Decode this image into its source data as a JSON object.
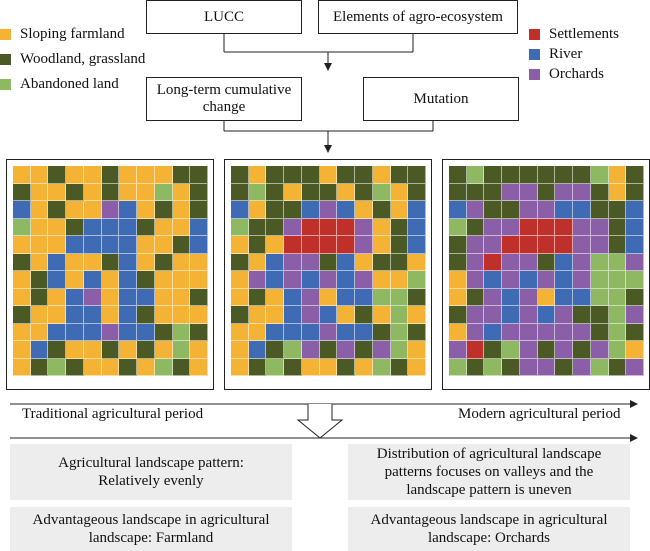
{
  "colors": {
    "sloping_farmland": "#f5b335",
    "woodland_grassland": "#4b5a25",
    "abandoned_land": "#8fb862",
    "settlements": "#c0302b",
    "river": "#3e6bb4",
    "orchards": "#8a5fa8"
  },
  "legend_left": [
    {
      "label": "Sloping farmland",
      "color_key": "sloping_farmland"
    },
    {
      "label": "Woodland, grassland",
      "color_key": "woodland_grassland"
    },
    {
      "label": "Abandoned land",
      "color_key": "abandoned_land"
    }
  ],
  "legend_right": [
    {
      "label": "Settlements",
      "color_key": "settlements"
    },
    {
      "label": "River",
      "color_key": "river"
    },
    {
      "label": "Orchards",
      "color_key": "orchards"
    }
  ],
  "top_boxes": {
    "lucc": "LUCC",
    "elements": "Elements of agro-ecosystem",
    "long_term": "Long-term cumulative change",
    "mutation": "Mutation"
  },
  "grid_codes": "S=sloping farmland, W=woodland/grassland, A=abandoned land, T=settlements, R=river, O=orchards",
  "grids": [
    [
      "SSWSSWSSSWW",
      "WSSWSWSSASW",
      "RSWSSORSWSW",
      "ASSWRRRWSSR",
      "SSSRRRRSSWR",
      "WSRSSWRSWSS",
      "SWRSRSRWSSS",
      "SWSROSRRSSW",
      "WSSRRSRWSSS",
      "SSRRRORRWAW",
      "SRWSSWSWSAS",
      "SWAWSSWSAWS"
    ],
    [
      "WSWWWSWWSWW",
      "WAWSWWSWASW",
      "RSWWRORSWSR",
      "AWWOTTTOSWR",
      "SWSTTTTOSWR",
      "WSROOWRSWWS",
      "SOROROROSSA",
      "SWSROSRRAAW",
      "WSSRORSWSAS",
      "SSRRRORRWAW",
      "SRWAOWOWOAS",
      "SWAWSSWSAWS"
    ],
    [
      "WAWWWWWWASW",
      "WWWOOWOOWSW",
      "ROWWOORRWWR",
      "AWOOTTTOOWR",
      "WOOTTTTOOWR",
      "WOTOOWROAAO",
      "SOROROROAAA",
      "SWOROSRRAAW",
      "WOOROROWWAO",
      "SOROOOOOWAW",
      "OTWAOWOWOAS",
      "AWAWOOWOAWO"
    ]
  ],
  "periods": {
    "traditional": "Traditional agricultural period",
    "modern": "Modern agricultural period"
  },
  "bottom": {
    "pattern_left": "Agricultural landscape pattern: Relatively evenly",
    "pattern_right": "Distribution of agricultural landscape patterns focuses on valleys and the landscape pattern is uneven",
    "advantage_left": "Advantageous landscape in agricultural landscape: Farmland",
    "advantage_right": "Advantageous landscape in agricultural landscape: Orchards"
  }
}
